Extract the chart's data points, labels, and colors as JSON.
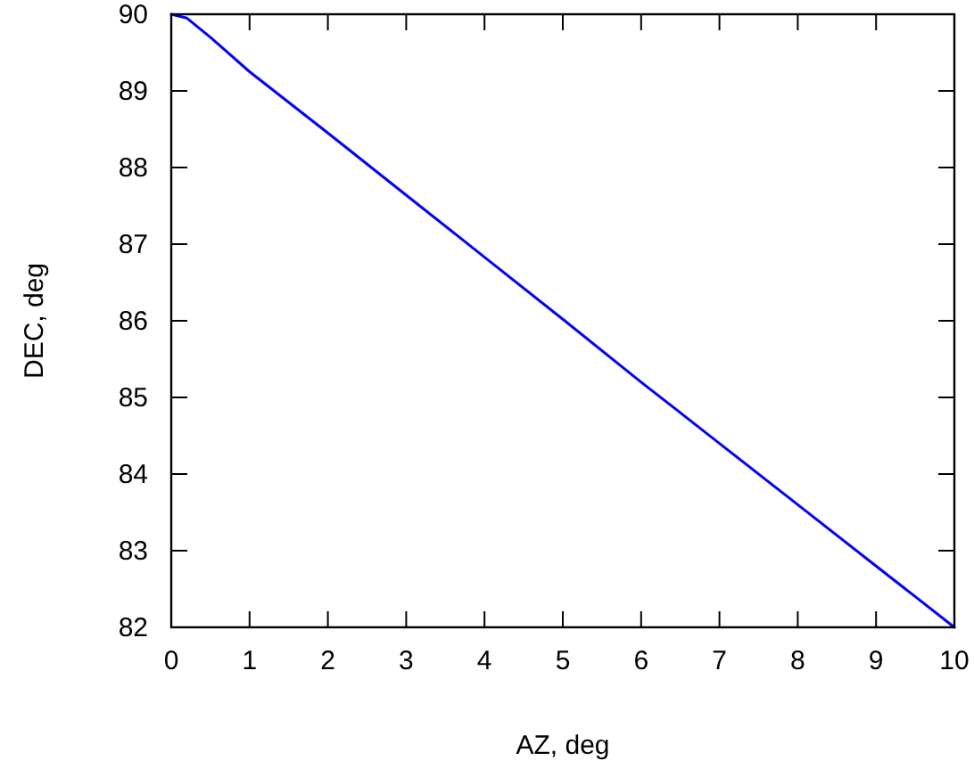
{
  "chart_data": {
    "type": "line",
    "xlabel": "AZ, deg",
    "ylabel": "DEC, deg",
    "x": [
      0,
      0.2,
      0.5,
      1,
      2,
      3,
      4,
      5,
      6,
      7,
      8,
      9,
      10
    ],
    "series": [
      {
        "color": "#0000ff",
        "values": [
          90,
          89.95,
          89.7,
          89.25,
          88.45,
          87.64,
          86.83,
          86.02,
          85.2,
          84.4,
          83.6,
          82.8,
          82
        ]
      }
    ],
    "xlim": [
      0,
      10
    ],
    "xticks": [
      0,
      1,
      2,
      3,
      4,
      5,
      6,
      7,
      8,
      9,
      10
    ],
    "ylim": [
      82,
      90
    ],
    "yticks": [
      82,
      83,
      84,
      85,
      86,
      87,
      88,
      89,
      90
    ],
    "marker": "none",
    "line_style": "solid"
  }
}
